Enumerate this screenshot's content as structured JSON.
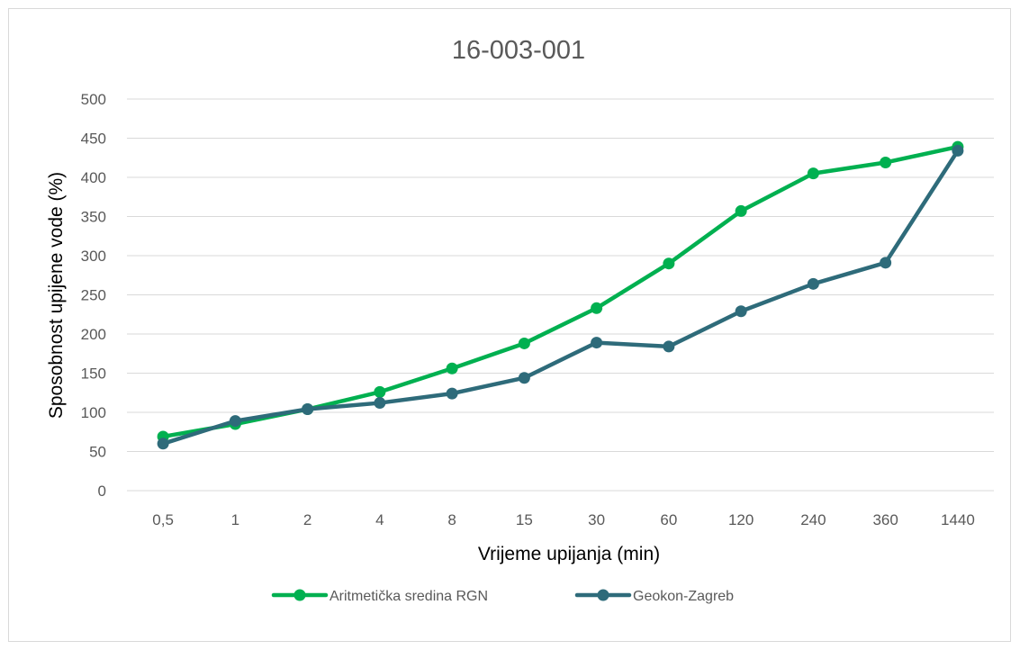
{
  "chart_data": {
    "type": "line",
    "title": "16-003-001",
    "xlabel": "Vrijeme upijanja (min)",
    "ylabel": "Sposobnost upijene vode (%)",
    "categories": [
      "0,5",
      "1",
      "2",
      "4",
      "8",
      "15",
      "30",
      "60",
      "120",
      "240",
      "360",
      "1440"
    ],
    "ylim": [
      0,
      500
    ],
    "yticks": [
      0,
      50,
      100,
      150,
      200,
      250,
      300,
      350,
      400,
      450,
      500
    ],
    "grid": true,
    "legend_position": "bottom",
    "series": [
      {
        "name": "Aritmetička sredina RGN",
        "color": "#00b050",
        "values": [
          69,
          85,
          104,
          126,
          156,
          188,
          233,
          290,
          357,
          405,
          419,
          439
        ]
      },
      {
        "name": "Geokon-Zagreb",
        "color": "#2e6b7a",
        "values": [
          60,
          89,
          104,
          112,
          124,
          144,
          189,
          184,
          229,
          264,
          291,
          434
        ]
      }
    ]
  }
}
